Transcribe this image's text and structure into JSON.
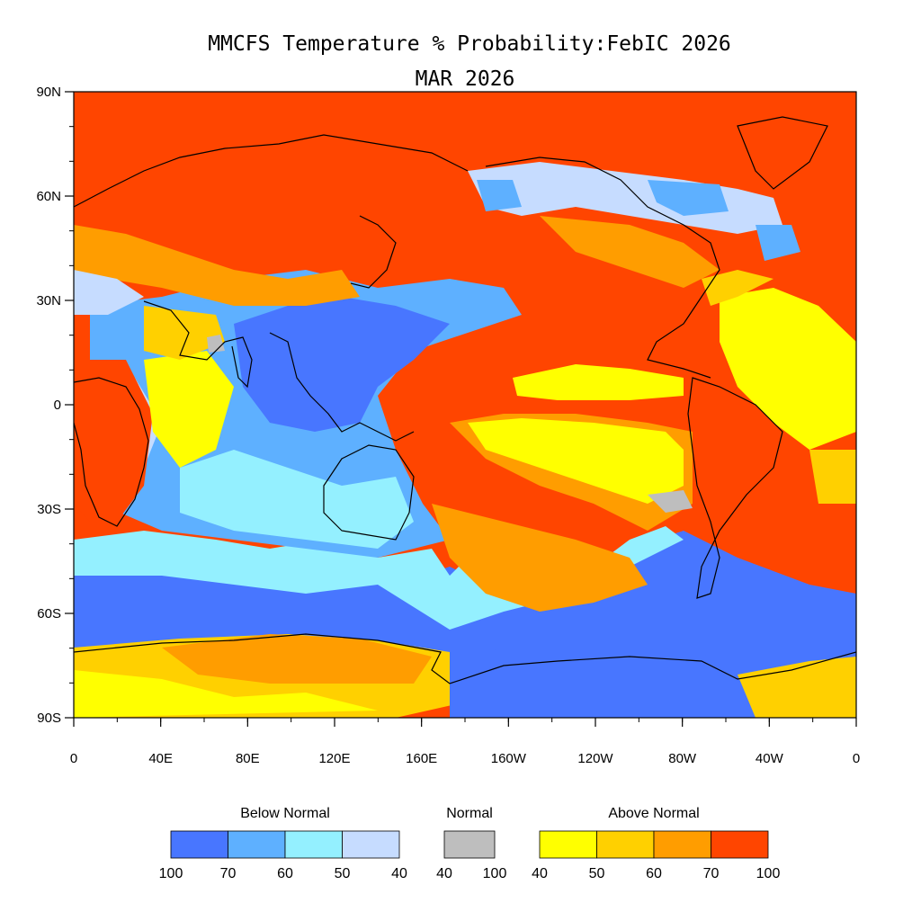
{
  "title_line1": "MMCFS Temperature % Probability:FebIC 2026",
  "title_line2": "MAR 2026",
  "map": {
    "lon_range": [
      0,
      360
    ],
    "lat_range": [
      -90,
      90
    ],
    "lat_ticks": [
      {
        "lat": 90,
        "label": "90N"
      },
      {
        "lat": 60,
        "label": "60N"
      },
      {
        "lat": 30,
        "label": "30N"
      },
      {
        "lat": 0,
        "label": "0"
      },
      {
        "lat": -30,
        "label": "30S"
      },
      {
        "lat": -60,
        "label": "60S"
      },
      {
        "lat": -90,
        "label": "90S"
      }
    ],
    "lon_ticks": [
      {
        "lon": 0,
        "label": "0"
      },
      {
        "lon": 40,
        "label": "40E"
      },
      {
        "lon": 80,
        "label": "80E"
      },
      {
        "lon": 120,
        "label": "120E"
      },
      {
        "lon": 160,
        "label": "160E"
      },
      {
        "lon": 200,
        "label": "160W"
      },
      {
        "lon": 240,
        "label": "120W"
      },
      {
        "lon": 280,
        "label": "80W"
      },
      {
        "lon": 320,
        "label": "40W"
      },
      {
        "lon": 360,
        "label": "0"
      }
    ],
    "colors": {
      "above_100": "#ff4500",
      "above_70": "#ff9d00",
      "above_60": "#ffd000",
      "above_50": "#ffff00",
      "normal": "#bebebe",
      "below_50": "#c6dcff",
      "below_60": "#94f0ff",
      "below_70": "#5eb0ff",
      "below_100": "#4876ff",
      "no_signal": "#ffffff"
    }
  },
  "legend": {
    "below": {
      "label": "Below Normal",
      "colors": [
        "#4876ff",
        "#5eb0ff",
        "#94f0ff",
        "#c6dcff"
      ],
      "ticks": [
        "100",
        "70",
        "60",
        "50",
        "40"
      ]
    },
    "normal": {
      "label": "Normal",
      "colors": [
        "#bebebe"
      ],
      "ticks": [
        "40",
        "100"
      ]
    },
    "above": {
      "label": "Above Normal",
      "colors": [
        "#ffff00",
        "#ffd000",
        "#ff9d00",
        "#ff4500"
      ],
      "ticks": [
        "40",
        "50",
        "60",
        "70",
        "100"
      ]
    }
  }
}
